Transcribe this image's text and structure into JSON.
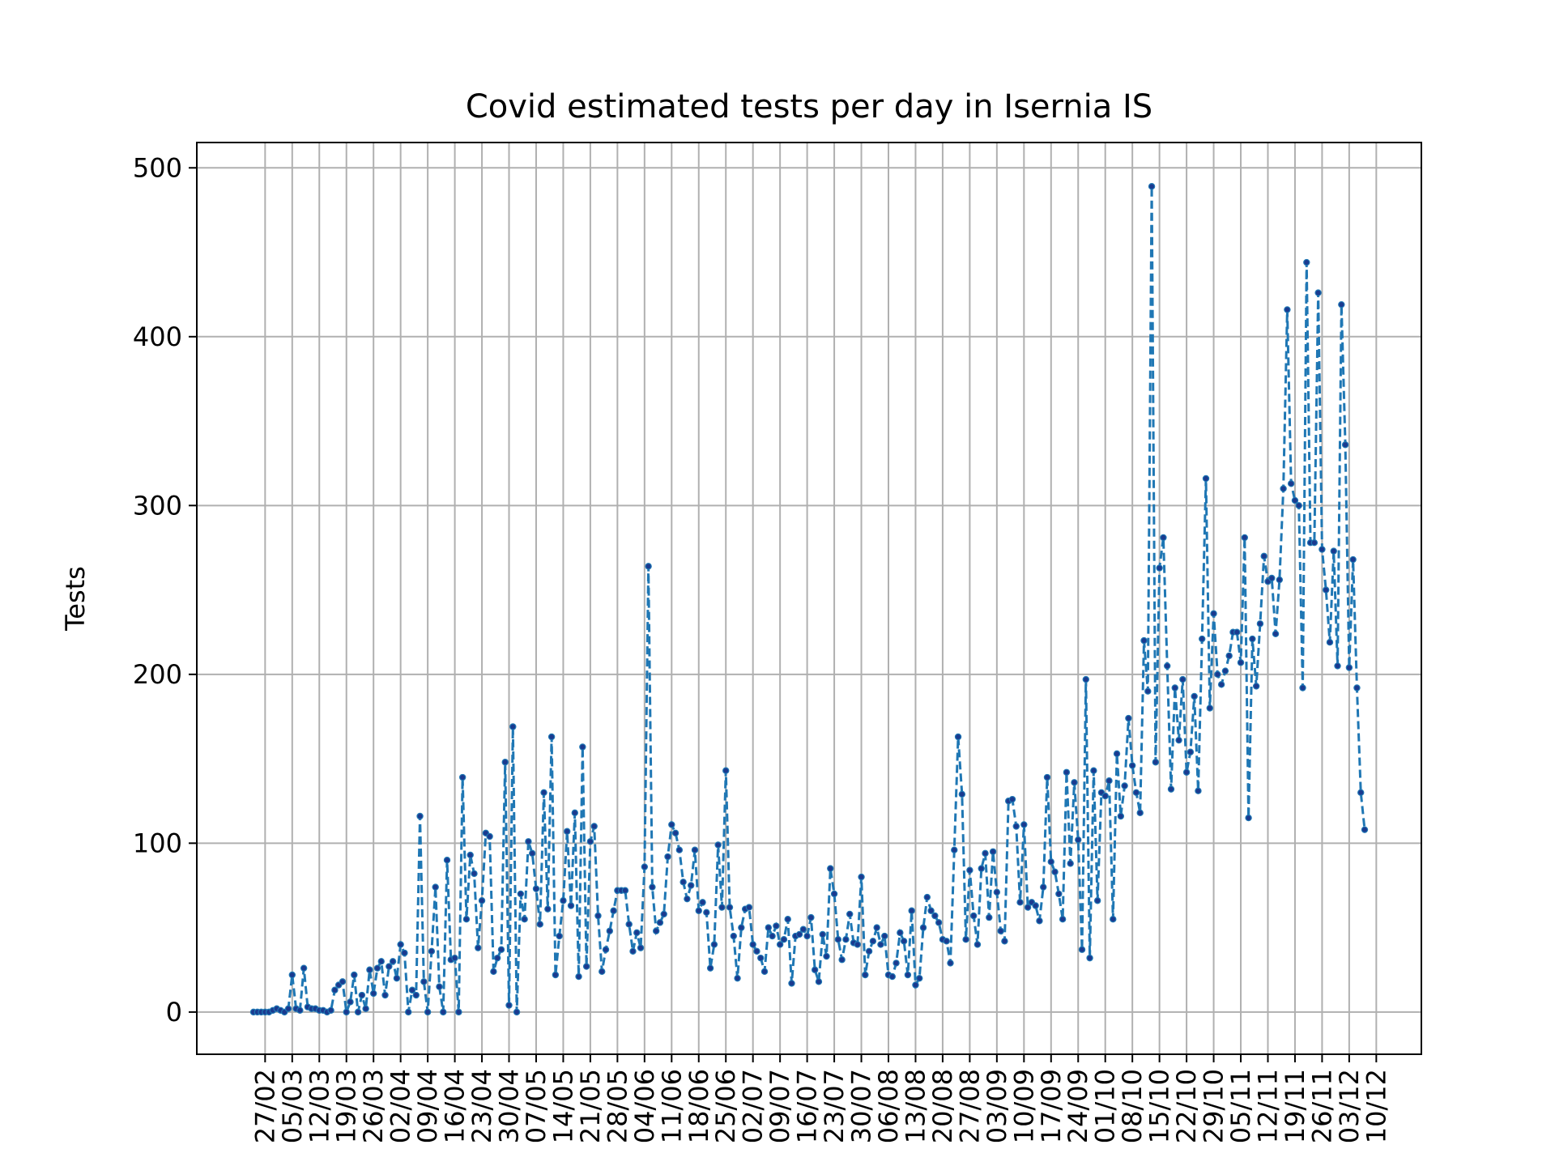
{
  "chart_data": {
    "type": "line",
    "title": "Covid estimated tests per day in Isernia IS",
    "xlabel": "",
    "ylabel": "Tests",
    "ylim": [
      -25,
      515
    ],
    "y_ticks": [
      0,
      100,
      200,
      300,
      400,
      500
    ],
    "grid": true,
    "line_color": "#1f77b4",
    "marker_color": "#1a3a8f",
    "x_tick_labels": [
      "27/02",
      "05/03",
      "12/03",
      "19/03",
      "26/03",
      "02/04",
      "09/04",
      "16/04",
      "23/04",
      "30/04",
      "07/05",
      "14/05",
      "21/05",
      "28/05",
      "04/06",
      "11/06",
      "18/06",
      "25/06",
      "02/07",
      "09/07",
      "16/07",
      "23/07",
      "30/07",
      "06/08",
      "13/08",
      "20/08",
      "27/08",
      "03/09",
      "10/09",
      "17/09",
      "24/09",
      "01/10",
      "08/10",
      "15/10",
      "22/10",
      "29/10",
      "05/11",
      "12/11",
      "19/11",
      "26/11",
      "03/12",
      "10/12"
    ],
    "series": [
      {
        "start_date": "2020-02-24",
        "values": [
          0,
          0,
          0,
          0,
          0,
          1,
          2,
          1,
          0,
          2,
          22,
          2,
          1,
          26,
          3,
          2,
          2,
          1,
          1,
          0,
          1,
          13,
          16,
          18,
          0,
          6,
          22,
          0,
          10,
          2,
          25,
          11,
          26,
          30,
          10,
          27,
          30,
          20,
          40,
          35,
          0,
          13,
          10,
          116,
          18,
          0,
          36,
          74,
          15,
          0,
          90,
          31,
          32,
          0,
          139,
          55,
          93,
          82,
          38,
          66,
          106,
          104,
          24,
          32,
          37,
          148,
          4,
          169,
          0,
          70,
          55,
          101,
          94,
          73,
          52,
          130,
          61,
          163,
          22,
          45,
          66,
          107,
          63,
          118,
          21,
          157,
          27,
          101,
          110,
          57,
          24,
          37,
          48,
          60,
          72,
          72,
          72,
          52,
          36,
          47,
          38,
          86,
          264,
          74,
          48,
          53,
          58,
          92,
          111,
          106,
          96,
          77,
          67,
          75,
          96,
          60,
          65,
          59,
          26,
          40,
          99,
          62,
          143,
          62,
          45,
          20,
          50,
          61,
          62,
          40,
          36,
          32,
          24,
          50,
          45,
          51,
          40,
          43,
          55,
          17,
          45,
          46,
          49,
          45,
          56,
          25,
          18,
          46,
          33,
          85,
          70,
          43,
          31,
          43,
          58,
          41,
          40,
          80,
          22,
          36,
          42,
          50,
          40,
          45,
          22,
          21,
          29,
          47,
          42,
          22,
          60,
          16,
          20,
          50,
          68,
          60,
          57,
          53,
          43,
          42,
          29,
          96,
          163,
          129,
          43,
          84,
          57,
          40,
          85,
          94,
          56,
          95,
          71,
          48,
          42,
          125,
          126,
          110,
          65,
          111,
          62,
          65,
          63,
          54,
          74,
          139,
          89,
          83,
          70,
          55,
          142,
          88,
          136,
          102,
          37,
          197,
          32,
          143,
          66,
          130,
          128,
          137,
          55,
          153,
          116,
          134,
          174,
          146,
          130,
          118,
          220,
          190,
          489,
          148,
          263,
          281,
          205,
          132,
          192,
          161,
          197,
          142,
          154,
          187,
          131,
          221,
          316,
          180,
          236,
          200,
          194,
          202,
          211,
          225,
          225,
          207,
          281,
          115,
          221,
          193,
          230,
          270,
          255,
          257,
          224,
          256,
          310,
          416,
          313,
          303,
          300,
          192,
          444,
          278,
          278,
          426,
          274,
          250,
          219,
          273,
          205,
          419,
          336,
          204,
          268,
          192,
          130,
          108
        ]
      }
    ]
  }
}
